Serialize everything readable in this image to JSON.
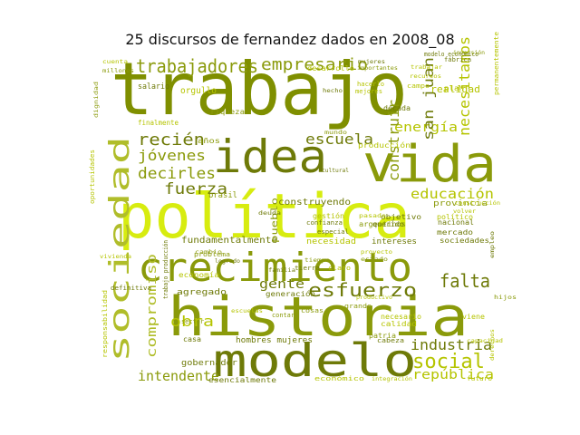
{
  "title": "25 discursos de fernandez dados en 2008_08",
  "colors": {
    "olive_dark": "#6e7a08",
    "olive": "#8a9a0a",
    "yellow_green": "#b5c400",
    "bright_yellow": "#d9ea00",
    "pale": "#c8d24a"
  },
  "words": [
    {
      "text": "trabajo",
      "color": "#7f8f00"
    },
    {
      "text": "política",
      "color": "#d7ec10"
    },
    {
      "text": "historia",
      "color": "#8a9a0a"
    },
    {
      "text": "crecimiento",
      "color": "#8a9a0a"
    },
    {
      "text": "modelo",
      "color": "#6e7a08"
    },
    {
      "text": "vida",
      "color": "#8a9a0a"
    },
    {
      "text": "idea",
      "color": "#6e7a08"
    },
    {
      "text": "sociedad",
      "color": "#b0bd2a"
    },
    {
      "text": "trabajadores",
      "color": "#8a9a0a"
    },
    {
      "text": "empresario",
      "color": "#8a9a0a"
    },
    {
      "text": "esfuerzo",
      "color": "#6e7a08"
    },
    {
      "text": "compromiso",
      "color": "#b0bd2a"
    },
    {
      "text": "social",
      "color": "#b5c400"
    },
    {
      "text": "falta",
      "color": "#6e7a08"
    },
    {
      "text": "recién",
      "color": "#6e7a08"
    },
    {
      "text": "jóvenes",
      "color": "#8a9a0a"
    },
    {
      "text": "decirles",
      "color": "#8a9a0a"
    },
    {
      "text": "fuerza",
      "color": "#6e7a08"
    },
    {
      "text": "escuela",
      "color": "#6e7a08"
    },
    {
      "text": "educación",
      "color": "#b5c400"
    },
    {
      "text": "energía",
      "color": "#b5c400"
    },
    {
      "text": "construir",
      "color": "#8a9a0a"
    },
    {
      "text": "san juan",
      "color": "#6e7a08"
    },
    {
      "text": "necesitamos",
      "color": "#b5c400"
    },
    {
      "text": "obra",
      "color": "#b5c400"
    },
    {
      "text": "intendente",
      "color": "#8a9a0a"
    },
    {
      "text": "industria",
      "color": "#6e7a08"
    },
    {
      "text": "república",
      "color": "#b5c400"
    },
    {
      "text": "gente",
      "color": "#6e7a08"
    },
    {
      "text": "fundamentalmente",
      "color": "#6e7a08"
    },
    {
      "text": "pueblo",
      "color": "#8a9a0a"
    },
    {
      "text": "construyendo",
      "color": "#6e7a08"
    },
    {
      "text": "realidad",
      "color": "#b5c400"
    },
    {
      "text": "desarrollo",
      "color": "#b5c400"
    },
    {
      "text": "provincia",
      "color": "#8a9a0a"
    },
    {
      "text": "producción",
      "color": "#b5c400"
    },
    {
      "text": "argentinos",
      "color": "#8a9a0a"
    },
    {
      "text": "hombres mujeres",
      "color": "#6e7a08"
    },
    {
      "text": "gobernador",
      "color": "#6e7a08"
    },
    {
      "text": "agregado",
      "color": "#6e7a08"
    },
    {
      "text": "intereses",
      "color": "#6e7a08"
    },
    {
      "text": "necesidad",
      "color": "#b5c400"
    },
    {
      "text": "generación",
      "color": "#6e7a08"
    },
    {
      "text": "calidad",
      "color": "#b5c400"
    },
    {
      "text": "económico",
      "color": "#b5c400"
    },
    {
      "text": "esencialmente",
      "color": "#6e7a08"
    },
    {
      "text": "mercado",
      "color": "#6e7a08"
    },
    {
      "text": "nacional",
      "color": "#6e7a08"
    },
    {
      "text": "objetivo",
      "color": "#6e7a08"
    },
    {
      "text": "sociedades",
      "color": "#6e7a08"
    },
    {
      "text": "brasil",
      "color": "#8a9a0a"
    },
    {
      "text": "salario",
      "color": "#6e7a08"
    },
    {
      "text": "orgullo",
      "color": "#b5c400"
    },
    {
      "text": "riqueza",
      "color": "#8a9a0a"
    },
    {
      "text": "década",
      "color": "#6e7a08"
    },
    {
      "text": "plan",
      "color": "#b5c400"
    },
    {
      "text": "viene",
      "color": "#b5c400"
    },
    {
      "text": "años",
      "color": "#8a9a0a"
    },
    {
      "text": "político",
      "color": "#b5c400"
    },
    {
      "text": "gestión",
      "color": "#b5c400"
    },
    {
      "text": "campo",
      "color": "#b5c400"
    },
    {
      "text": "problema",
      "color": "#8a9a0a"
    },
    {
      "text": "economía",
      "color": "#b5c400"
    },
    {
      "text": "definitiva",
      "color": "#6e7a08"
    },
    {
      "text": "sector",
      "color": "#8a9a0a"
    },
    {
      "text": "casa",
      "color": "#6e7a08"
    },
    {
      "text": "modelo económico",
      "color": "#6e7a08"
    },
    {
      "text": "necesario",
      "color": "#b5c400"
    },
    {
      "text": "futuro",
      "color": "#b5c400"
    },
    {
      "text": "importantes",
      "color": "#8a9a0a"
    },
    {
      "text": "volver",
      "color": "#b5c400"
    },
    {
      "text": "construcción",
      "color": "#b5c400"
    },
    {
      "text": "finalmente",
      "color": "#b5c400"
    },
    {
      "text": "tierra",
      "color": "#6e7a08"
    },
    {
      "text": "hacerlo",
      "color": "#b5c400"
    },
    {
      "text": "mejores",
      "color": "#b5c400"
    },
    {
      "text": "productivo",
      "color": "#b5c400"
    },
    {
      "text": "cultural",
      "color": "#6e7a08"
    },
    {
      "text": "hecho",
      "color": "#6e7a08"
    },
    {
      "text": "cosas",
      "color": "#8a9a0a"
    },
    {
      "text": "patria",
      "color": "#8a9a0a"
    },
    {
      "text": "cabeza",
      "color": "#6e7a08"
    },
    {
      "text": "responsabilidad",
      "color": "#b5c400"
    },
    {
      "text": "permanentemente",
      "color": "#b5c400"
    },
    {
      "text": "contar",
      "color": "#8a9a0a"
    },
    {
      "text": "inversión",
      "color": "#8a9a0a"
    },
    {
      "text": "claro",
      "color": "#b5c400"
    },
    {
      "text": "trabajo producción",
      "color": "#6e7a08"
    },
    {
      "text": "logrado",
      "color": "#6e7a08"
    },
    {
      "text": "deuda",
      "color": "#6e7a08"
    },
    {
      "text": "oportunidades",
      "color": "#b5c400"
    },
    {
      "text": "tiempo",
      "color": "#8a9a0a"
    },
    {
      "text": "mundo",
      "color": "#8a9a0a"
    },
    {
      "text": "escuelas",
      "color": "#b5c400"
    },
    {
      "text": "confianza",
      "color": "#6e7a08"
    },
    {
      "text": "especial",
      "color": "#6e7a08"
    },
    {
      "text": "querido",
      "color": "#6e7a08"
    },
    {
      "text": "millones",
      "color": "#8a9a0a"
    },
    {
      "text": "cuenta",
      "color": "#b5c400"
    },
    {
      "text": "fábrica",
      "color": "#6e7a08"
    },
    {
      "text": "trabajar",
      "color": "#b5c400"
    },
    {
      "text": "mujeres",
      "color": "#6e7a08"
    },
    {
      "text": "recursos",
      "color": "#b5c400"
    },
    {
      "text": "dignidad",
      "color": "#8a9a0a"
    },
    {
      "text": "pasado",
      "color": "#b5c400"
    },
    {
      "text": "grande",
      "color": "#8a9a0a"
    },
    {
      "text": "integración",
      "color": "#b5c400"
    },
    {
      "text": "empleo",
      "color": "#6e7a08"
    },
    {
      "text": "vivienda",
      "color": "#b5c400"
    },
    {
      "text": "hijos",
      "color": "#8a9a0a"
    },
    {
      "text": "familia",
      "color": "#6e7a08"
    },
    {
      "text": "capacidad",
      "color": "#b5c400"
    },
    {
      "text": "derechos",
      "color": "#b5c400"
    },
    {
      "text": "cambio",
      "color": "#8a9a0a"
    },
    {
      "text": "proyecto",
      "color": "#b5c400"
    },
    {
      "text": "estado",
      "color": "#8a9a0a"
    }
  ]
}
